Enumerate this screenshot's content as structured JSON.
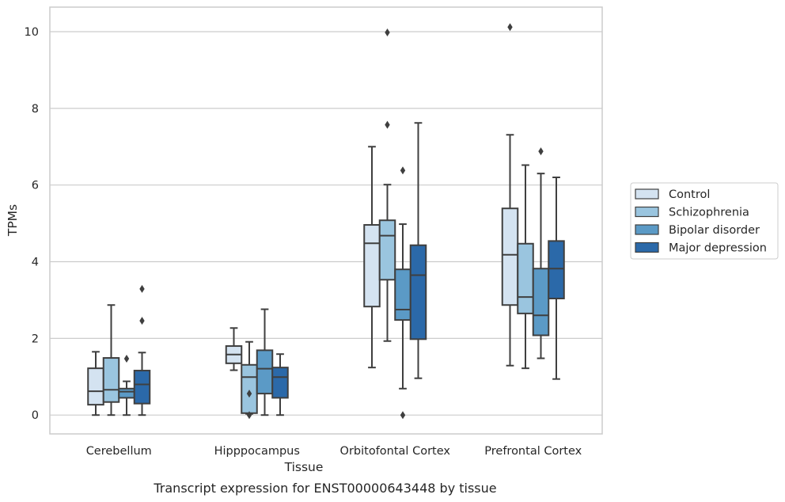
{
  "chart_data": {
    "type": "box",
    "xlabel": "Tissue",
    "ylabel": "TPMs",
    "caption": "Transcript expression for ENST00000643448 by tissue",
    "ylim": [
      -0.5,
      10.6
    ],
    "yticks": [
      0,
      2,
      4,
      6,
      8,
      10
    ],
    "grid": "horizontal",
    "legend_position": "right",
    "categories": [
      "Cerebellum",
      "Hipppocampus",
      "Orbitofontal Cortex",
      "Prefrontal Cortex"
    ],
    "series": [
      {
        "name": "Control",
        "color": "#d4e3f1",
        "boxes": [
          {
            "whislo": 0.0,
            "q1": 0.27,
            "med": 0.62,
            "q3": 1.22,
            "whishi": 1.65,
            "fliers": []
          },
          {
            "whislo": 1.17,
            "q1": 1.35,
            "med": 1.58,
            "q3": 1.8,
            "whishi": 2.27,
            "fliers": []
          },
          {
            "whislo": 1.24,
            "q1": 2.83,
            "med": 4.48,
            "q3": 4.96,
            "whishi": 7.0,
            "fliers": []
          },
          {
            "whislo": 1.29,
            "q1": 2.87,
            "med": 4.18,
            "q3": 5.39,
            "whishi": 7.31,
            "fliers": [
              10.12
            ]
          }
        ]
      },
      {
        "name": "Schizophrenia",
        "color": "#9ac5df",
        "boxes": [
          {
            "whislo": 0.0,
            "q1": 0.34,
            "med": 0.66,
            "q3": 1.49,
            "whishi": 2.87,
            "fliers": []
          },
          {
            "whislo": 0.03,
            "q1": 0.05,
            "med": 0.99,
            "q3": 1.31,
            "whishi": 1.91,
            "fliers": [
              0.56,
              0.0
            ]
          },
          {
            "whislo": 1.93,
            "q1": 3.53,
            "med": 4.68,
            "q3": 5.08,
            "whishi": 6.01,
            "fliers": [
              9.98,
              7.57
            ]
          },
          {
            "whislo": 1.22,
            "q1": 2.65,
            "med": 3.08,
            "q3": 4.47,
            "whishi": 6.52,
            "fliers": []
          }
        ]
      },
      {
        "name": "Bipolar disorder",
        "color": "#5b9ac6",
        "boxes": [
          {
            "whislo": 0.0,
            "q1": 0.45,
            "med": 0.61,
            "q3": 0.69,
            "whishi": 0.88,
            "fliers": [
              1.47
            ]
          },
          {
            "whislo": 0.0,
            "q1": 0.56,
            "med": 1.21,
            "q3": 1.69,
            "whishi": 2.76,
            "fliers": []
          },
          {
            "whislo": 0.69,
            "q1": 2.48,
            "med": 2.75,
            "q3": 3.8,
            "whishi": 4.98,
            "fliers": [
              6.38,
              0.0
            ]
          },
          {
            "whislo": 1.48,
            "q1": 2.08,
            "med": 2.6,
            "q3": 3.82,
            "whishi": 6.3,
            "fliers": [
              6.88
            ]
          }
        ]
      },
      {
        "name": "Major depression",
        "color": "#2b69a9",
        "boxes": [
          {
            "whislo": 0.0,
            "q1": 0.3,
            "med": 0.8,
            "q3": 1.16,
            "whishi": 1.63,
            "fliers": [
              3.29,
              2.46
            ]
          },
          {
            "whislo": 0.0,
            "q1": 0.45,
            "med": 0.99,
            "q3": 1.24,
            "whishi": 1.59,
            "fliers": []
          },
          {
            "whislo": 0.96,
            "q1": 1.98,
            "med": 3.65,
            "q3": 4.43,
            "whishi": 7.62,
            "fliers": []
          },
          {
            "whislo": 0.94,
            "q1": 3.04,
            "med": 3.82,
            "q3": 4.54,
            "whishi": 6.2,
            "fliers": []
          }
        ]
      }
    ]
  }
}
